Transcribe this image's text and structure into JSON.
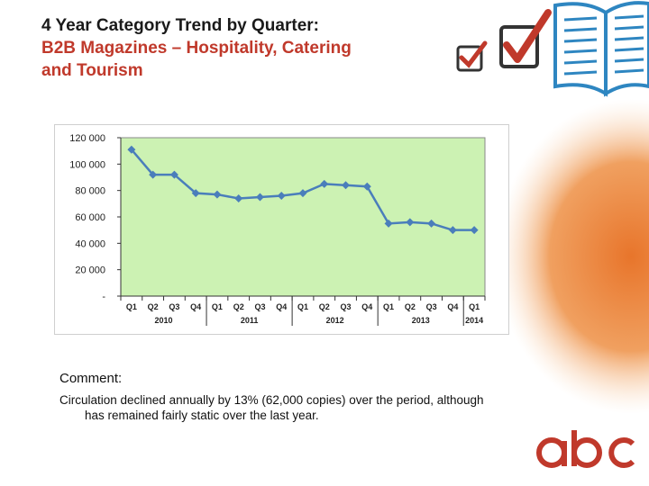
{
  "title": {
    "line1": "4 Year Category Trend by Quarter:",
    "line2": "B2B Magazines – Hospitality, Catering",
    "line3": "and Tourism"
  },
  "comment": {
    "heading": "Comment:",
    "line1": "Circulation declined annually by 13% (62,000 copies) over the period,  although",
    "line2": "has remained fairly static over the last year."
  },
  "logo_text": "abc",
  "colors": {
    "title_dark": "#1a1a1a",
    "title_red": "#c0392b",
    "plot_bg": "#ccf2b3",
    "series": "#4a7ebb"
  },
  "chart_data": {
    "type": "line",
    "title": "",
    "xlabel": "",
    "ylabel": "",
    "ylim": [
      0,
      120000
    ],
    "y_ticks": [
      0,
      20000,
      40000,
      60000,
      80000,
      100000,
      120000
    ],
    "y_tick_labels": [
      "-",
      "20 000",
      "40 000",
      "60 000",
      "80 000",
      "100 000",
      "120 000"
    ],
    "grid": false,
    "categories": [
      "Q1",
      "Q2",
      "Q3",
      "Q4",
      "Q1",
      "Q2",
      "Q3",
      "Q4",
      "Q1",
      "Q2",
      "Q3",
      "Q4",
      "Q1",
      "Q2",
      "Q3",
      "Q4",
      "Q1"
    ],
    "years": [
      {
        "label": "2010",
        "start": 0,
        "end": 3
      },
      {
        "label": "2011",
        "start": 4,
        "end": 7
      },
      {
        "label": "2012",
        "start": 8,
        "end": 11
      },
      {
        "label": "2013",
        "start": 12,
        "end": 15
      },
      {
        "label": "2014",
        "start": 16,
        "end": 16
      }
    ],
    "series": [
      {
        "values": [
          111000,
          92000,
          92000,
          78000,
          77000,
          74000,
          75000,
          76000,
          78000,
          85000,
          84000,
          83000,
          55000,
          56000,
          55000,
          50000,
          50000
        ]
      }
    ]
  }
}
